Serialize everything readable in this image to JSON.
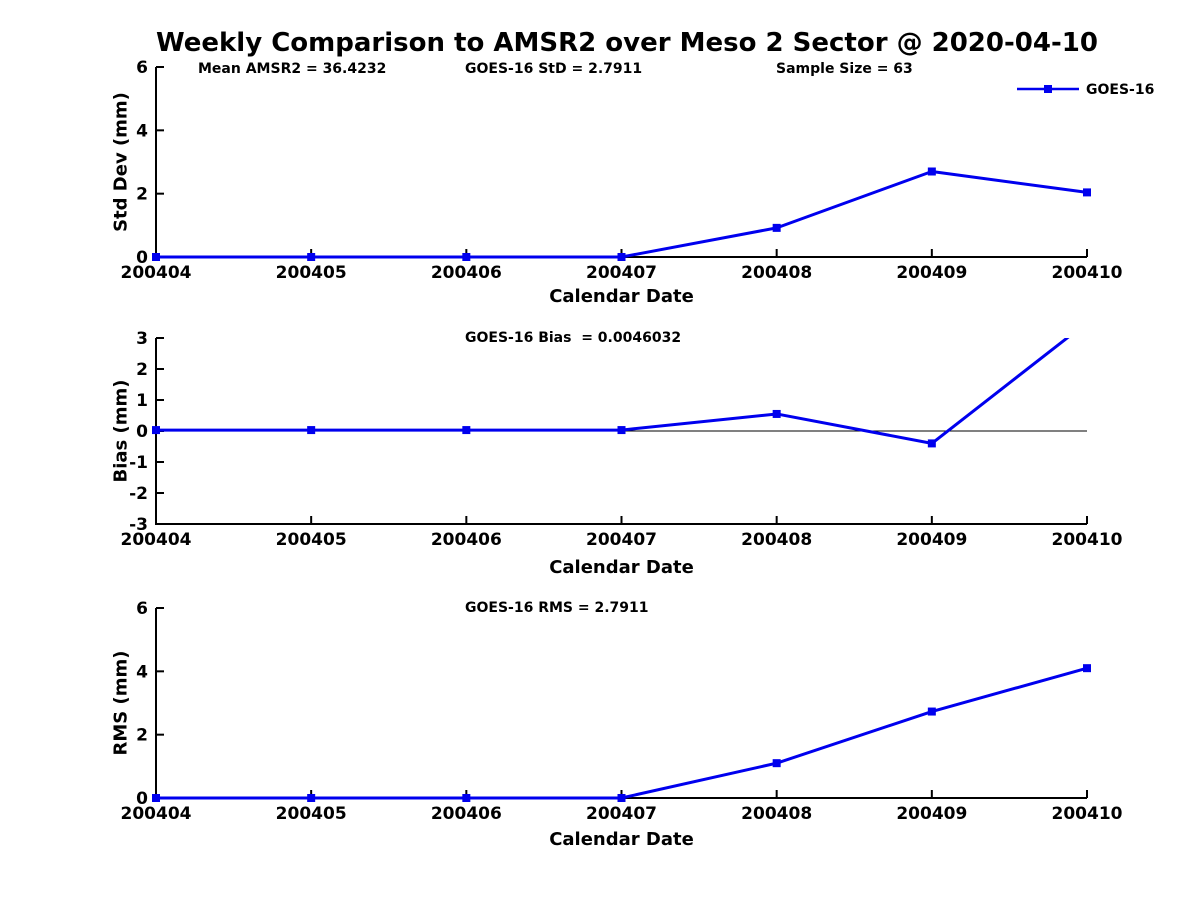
{
  "title": "Weekly Comparison to AMSR2 over Meso 2 Sector @ 2020-04-10",
  "colors": {
    "series": "#0000ee",
    "axis": "#000000",
    "text": "#000000",
    "background": "#ffffff"
  },
  "legend": {
    "label": "GOES-16",
    "position": "top-right",
    "marker": "square"
  },
  "stats": {
    "mean_amsr2": 36.4232,
    "goes16_std": 2.7911,
    "sample_size": 63,
    "goes16_bias": 0.0046032,
    "goes16_rms": 2.7911
  },
  "chart_data": [
    {
      "type": "line",
      "categories": [
        "200404",
        "200405",
        "200406",
        "200407",
        "200408",
        "200409",
        "200410"
      ],
      "series": [
        {
          "name": "GOES-16",
          "values": [
            0.0,
            0.0,
            0.0,
            0.0,
            0.92,
            2.7,
            2.04
          ]
        }
      ],
      "xlabel": "Calendar Date",
      "ylabel": "Std Dev (mm)",
      "ylim": [
        0,
        6
      ],
      "yticks": [
        0,
        2,
        4,
        6
      ],
      "grid": false,
      "zero_line": false,
      "show_legend": true,
      "annotations": [
        "Mean AMSR2 = 36.4232",
        "GOES-16 StD = 2.7911",
        "Sample Size = 63"
      ]
    },
    {
      "type": "line",
      "categories": [
        "200404",
        "200405",
        "200406",
        "200407",
        "200408",
        "200409",
        "200410"
      ],
      "series": [
        {
          "name": "GOES-16",
          "values": [
            0.03,
            0.03,
            0.03,
            0.03,
            0.55,
            -0.4,
            3.5
          ]
        }
      ],
      "xlabel": "Calendar Date",
      "ylabel": "Bias (mm)",
      "ylim": [
        -3,
        3
      ],
      "yticks": [
        3,
        2,
        1,
        0,
        -1,
        -2,
        -3
      ],
      "grid": false,
      "zero_line": true,
      "show_legend": false,
      "clip_note": "last value exceeds ymax and is clipped at 3",
      "annotations": [
        "GOES-16 Bias  = 0.0046032"
      ]
    },
    {
      "type": "line",
      "categories": [
        "200404",
        "200405",
        "200406",
        "200407",
        "200408",
        "200409",
        "200410"
      ],
      "series": [
        {
          "name": "GOES-16",
          "values": [
            0.0,
            0.0,
            0.0,
            0.0,
            1.1,
            2.73,
            4.1
          ]
        }
      ],
      "xlabel": "Calendar Date",
      "ylabel": "RMS (mm)",
      "ylim": [
        0,
        6
      ],
      "yticks": [
        0,
        2,
        4,
        6
      ],
      "grid": false,
      "zero_line": false,
      "show_legend": false,
      "annotations": [
        "GOES-16 RMS = 2.7911"
      ]
    }
  ]
}
